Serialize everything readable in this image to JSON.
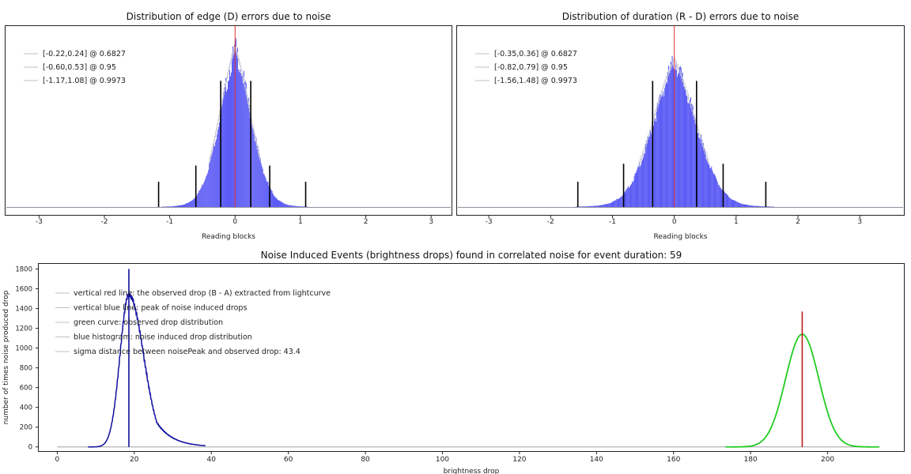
{
  "panels": [
    {
      "title": "Distribution of edge (D) errors due to noise",
      "xlabel": "Reading blocks"
    },
    {
      "title": "Distribution of duration (R - D) errors due to noise",
      "xlabel": "Reading blocks"
    },
    {
      "title": "Noise Induced Events (brightness drops) found in correlated noise for event duration: 59",
      "xlabel": "brightness drop",
      "ylabel": "number of times noise produced drop"
    }
  ],
  "chart_data": [
    {
      "type": "bar",
      "title": "Distribution of edge (D) errors due to noise",
      "xlabel": "Reading blocks",
      "xlim": [
        -3.5,
        3.3
      ],
      "xticks": [
        -3,
        -2,
        -1,
        0,
        1,
        2,
        3
      ],
      "grid": false,
      "legend_position": "top-left",
      "legend": [
        "[-0.22,0.24] @ 0.6827",
        "[-0.60,0.53] @ 0.95",
        "[-1.17,1.08] @ 0.9973"
      ],
      "histogram": {
        "center": 0.0,
        "sigma": 0.26,
        "color": "#5a5af5",
        "relative_peak": 0.9
      },
      "confidence_bounds": [
        {
          "lo": -0.22,
          "hi": 0.24,
          "relative_height": 0.7
        },
        {
          "lo": -0.6,
          "hi": 0.53,
          "relative_height": 0.23
        },
        {
          "lo": -1.17,
          "hi": 1.08,
          "relative_height": 0.14
        }
      ],
      "marker_x": 0.0,
      "marker_color": "#e03030"
    },
    {
      "type": "bar",
      "title": "Distribution of duration (R - D) errors due to noise",
      "xlabel": "Reading blocks",
      "xlim": [
        -3.5,
        3.7
      ],
      "xticks": [
        -3,
        -2,
        -1,
        0,
        1,
        2,
        3
      ],
      "grid": false,
      "legend_position": "top-left",
      "legend": [
        "[-0.35,0.36] @ 0.6827",
        "[-0.82,0.79] @ 0.95",
        "[-1.56,1.48] @ 0.9973"
      ],
      "histogram": {
        "center": 0.0,
        "sigma": 0.38,
        "color": "#5a5af5",
        "relative_peak": 0.83
      },
      "confidence_bounds": [
        {
          "lo": -0.35,
          "hi": 0.36,
          "relative_height": 0.7
        },
        {
          "lo": -0.82,
          "hi": 0.79,
          "relative_height": 0.24
        },
        {
          "lo": -1.56,
          "hi": 1.48,
          "relative_height": 0.14
        }
      ],
      "marker_x": 0.0,
      "marker_color": "#e03030"
    },
    {
      "type": "line",
      "title": "Noise Induced Events (brightness drops) found in correlated noise for event duration: 59",
      "xlabel": "brightness drop",
      "ylabel": "number of times noise produced drop",
      "xlim": [
        -5,
        220
      ],
      "ylim": [
        -50,
        1860
      ],
      "xticks": [
        0,
        20,
        40,
        60,
        80,
        100,
        120,
        140,
        160,
        180,
        200
      ],
      "yticks": [
        0,
        200,
        400,
        600,
        800,
        1000,
        1200,
        1400,
        1600,
        1800
      ],
      "grid": false,
      "legend_position": "top-left",
      "legend": [
        "vertical red line: the observed drop (B - A) extracted from lightcurve",
        "vertical blue line: peak of noise induced drops",
        "green curve: observed drop distribution",
        "blue histogram: noise induced drop distribution",
        "sigma distance between noisePeak and observed drop: 43.4"
      ],
      "series": [
        {
          "kind": "histogram",
          "color": "#1010a0",
          "peak_x": 18.6,
          "peak_y": 1540,
          "sigma_left": 2.3,
          "sigma_right": 3.8,
          "x_start": 8,
          "x_end": 38.5
        },
        {
          "kind": "gaussian",
          "color": "#22cc22",
          "center": 193.4,
          "sigma": 4.3,
          "peak_y": 1140,
          "x_start": 173.5,
          "x_end": 213.5
        }
      ],
      "baseline": {
        "x_start": 0,
        "x_end": 213.5
      },
      "vlines": [
        {
          "x": 18.6,
          "y": 1800,
          "color": "#1010a0"
        },
        {
          "x": 193.4,
          "y": 1370,
          "color": "#c01818"
        }
      ]
    }
  ]
}
